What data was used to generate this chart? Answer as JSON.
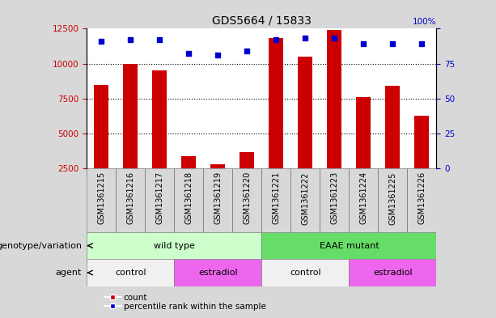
{
  "title": "GDS5664 / 15833",
  "samples": [
    "GSM1361215",
    "GSM1361216",
    "GSM1361217",
    "GSM1361218",
    "GSM1361219",
    "GSM1361220",
    "GSM1361221",
    "GSM1361222",
    "GSM1361223",
    "GSM1361224",
    "GSM1361225",
    "GSM1361226"
  ],
  "counts": [
    8500,
    10000,
    9500,
    3400,
    2800,
    3700,
    11800,
    10500,
    12400,
    7600,
    8400,
    6300
  ],
  "percentile_yvals": [
    11600,
    11700,
    11700,
    10700,
    10600,
    10900,
    11700,
    11800,
    11800,
    11400,
    11400,
    11400
  ],
  "ylim_left": [
    2500,
    12500
  ],
  "ylim_right": [
    0,
    100
  ],
  "yticks_left": [
    2500,
    5000,
    7500,
    10000,
    12500
  ],
  "yticks_right": [
    0,
    25,
    50,
    75,
    100
  ],
  "grid_lines": [
    5000,
    7500,
    10000
  ],
  "bar_color": "#cc0000",
  "dot_color": "#0000cc",
  "bg_color": "#d8d8d8",
  "plot_bg": "#ffffff",
  "xtick_bg": "#c8c8c8",
  "genotype_groups": [
    {
      "label": "wild type",
      "start": 0,
      "end": 6,
      "color": "#ccffcc"
    },
    {
      "label": "EAAE mutant",
      "start": 6,
      "end": 12,
      "color": "#66dd66"
    }
  ],
  "agent_groups": [
    {
      "label": "control",
      "start": 0,
      "end": 3,
      "color": "#f0f0f0"
    },
    {
      "label": "estradiol",
      "start": 3,
      "end": 6,
      "color": "#ee66ee"
    },
    {
      "label": "control",
      "start": 6,
      "end": 9,
      "color": "#f0f0f0"
    },
    {
      "label": "estradiol",
      "start": 9,
      "end": 12,
      "color": "#ee66ee"
    }
  ],
  "legend_items": [
    "count",
    "percentile rank within the sample"
  ],
  "row_labels": [
    "genotype/variation",
    "agent"
  ],
  "left_ylabel_color": "#cc0000",
  "right_ylabel_color": "#0000cc",
  "bar_width": 0.5,
  "title_fontsize": 10,
  "tick_fontsize": 7.5,
  "label_fontsize": 8,
  "row_label_fontsize": 8
}
